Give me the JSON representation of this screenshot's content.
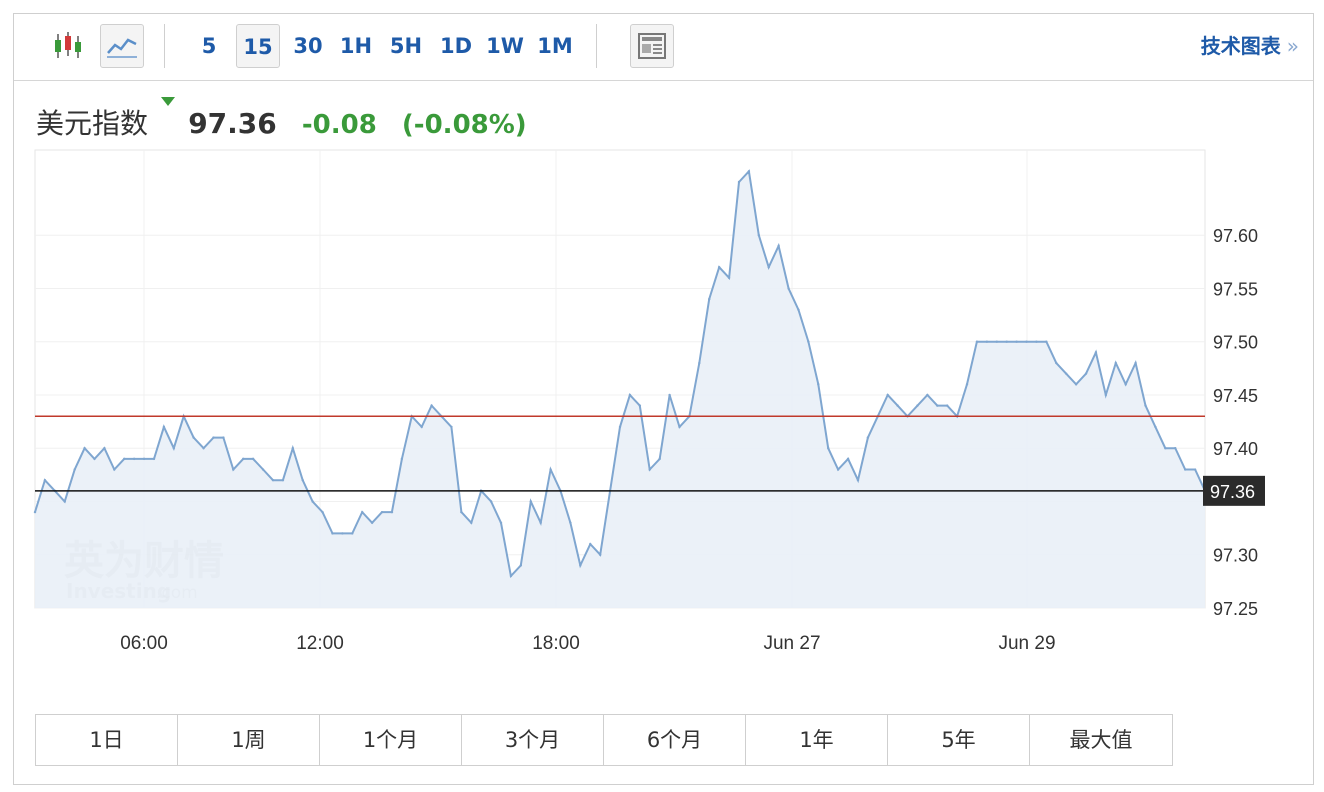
{
  "toolbar": {
    "intervals": [
      "5",
      "15",
      "30",
      "1H",
      "5H",
      "1D",
      "1W",
      "1M"
    ],
    "active_interval": "15",
    "tech_chart_label": "技术图表",
    "tech_chart_chevron": "»"
  },
  "header": {
    "name": "美元指数",
    "price": "97.36",
    "change": "-0.08",
    "change_pct": "(-0.08%)"
  },
  "watermark": {
    "cn": "英为财情",
    "en": "Investing",
    "suffix": ".com"
  },
  "range_tabs": [
    "1日",
    "1周",
    "1个月",
    "3个月",
    "6个月",
    "1年",
    "5年",
    "最大值"
  ],
  "colors": {
    "line": "#7fa6d0",
    "area": "#e9eff7",
    "prev_close_line": "#c0392b",
    "current_price_line": "#111111",
    "link": "#1e5aa8",
    "positive_change": "#3a9a3a"
  },
  "chart_data": {
    "type": "area",
    "y_ticks": [
      97.25,
      97.3,
      97.35,
      97.4,
      97.45,
      97.5,
      97.55,
      97.6
    ],
    "y_tick_labels": [
      "97.25",
      "97.30",
      "",
      "97.40",
      "97.45",
      "97.50",
      "97.55",
      "97.60"
    ],
    "ylim": [
      97.25,
      97.68
    ],
    "x_tick_labels": [
      "06:00",
      "12:00",
      "18:00",
      "Jun 27",
      "Jun 29"
    ],
    "reference_lines": [
      {
        "value": 97.43,
        "color": "#c0392b"
      },
      {
        "value": 97.36,
        "color": "#111111",
        "label": "97.36"
      }
    ],
    "grid": true,
    "values": [
      97.34,
      97.37,
      97.36,
      97.35,
      97.38,
      97.4,
      97.39,
      97.4,
      97.38,
      97.39,
      97.39,
      97.39,
      97.39,
      97.42,
      97.4,
      97.43,
      97.41,
      97.4,
      97.41,
      97.41,
      97.38,
      97.39,
      97.39,
      97.38,
      97.37,
      97.37,
      97.4,
      97.37,
      97.35,
      97.34,
      97.32,
      97.32,
      97.32,
      97.34,
      97.33,
      97.34,
      97.34,
      97.39,
      97.43,
      97.42,
      97.44,
      97.43,
      97.42,
      97.34,
      97.33,
      97.36,
      97.35,
      97.33,
      97.28,
      97.29,
      97.35,
      97.33,
      97.38,
      97.36,
      97.33,
      97.29,
      97.31,
      97.3,
      97.36,
      97.42,
      97.45,
      97.44,
      97.38,
      97.39,
      97.45,
      97.42,
      97.43,
      97.48,
      97.54,
      97.57,
      97.56,
      97.65,
      97.66,
      97.6,
      97.57,
      97.59,
      97.55,
      97.53,
      97.5,
      97.46,
      97.4,
      97.38,
      97.39,
      97.37,
      97.41,
      97.43,
      97.45,
      97.44,
      97.43,
      97.44,
      97.45,
      97.44,
      97.44,
      97.43,
      97.46,
      97.5,
      97.5,
      97.5,
      97.5,
      97.5,
      97.5,
      97.5,
      97.5,
      97.48,
      97.47,
      97.46,
      97.47,
      97.49,
      97.45,
      97.48,
      97.46,
      97.48,
      97.44,
      97.42,
      97.4,
      97.4,
      97.38,
      97.38,
      97.36
    ]
  }
}
